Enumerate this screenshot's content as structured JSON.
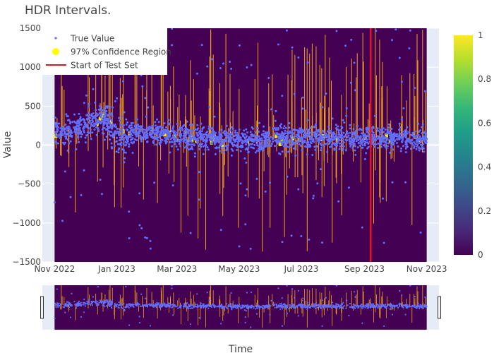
{
  "chart_data": {
    "type": "scatter",
    "title": "HDR Intervals.",
    "xlabel": "Time",
    "ylabel": "Value",
    "x_range": [
      "2022-10-20",
      "2023-11-13"
    ],
    "data_x_range": [
      "2022-11-01",
      "2023-11-01"
    ],
    "ylim": [
      -1500,
      1500
    ],
    "x_ticks": [
      {
        "date": "2022-11-01",
        "label": "Nov 2022"
      },
      {
        "date": "2023-01-01",
        "label": "Jan 2023"
      },
      {
        "date": "2023-03-01",
        "label": "Mar 2023"
      },
      {
        "date": "2023-05-01",
        "label": "May 2023"
      },
      {
        "date": "2023-07-01",
        "label": "Jul 2023"
      },
      {
        "date": "2023-09-01",
        "label": "Sep 2023"
      },
      {
        "date": "2023-11-01",
        "label": "Nov 2023"
      }
    ],
    "y_ticks": [
      -1500,
      -1000,
      -500,
      0,
      500,
      1000,
      1500
    ],
    "y_tick_labels": [
      "−1500",
      "−1000",
      "−500",
      "0",
      "500",
      "1000",
      "1500"
    ],
    "test_start_date": "2023-09-07",
    "legend": {
      "placement": "top-left",
      "entries": [
        "True Value",
        "97% Confidence Region",
        "Start of Test Set"
      ]
    },
    "colorbar": {
      "range": [
        0,
        1
      ],
      "ticks": [
        0,
        0.2,
        0.4,
        0.6,
        0.8,
        1
      ],
      "tick_labels": [
        "0",
        "0.2",
        "0.4",
        "0.6",
        "0.8",
        "1"
      ],
      "colorscale": "Viridis"
    },
    "colors": {
      "scatter": "#636efa",
      "confidence": "#ffff00",
      "confidence_spikes": "#f2a516",
      "test_line": "#e8131a",
      "heatmap_background": "#440154",
      "plot_background": "#e5ecf6"
    },
    "series": [
      {
        "name": "True Value",
        "description_points": [
          {
            "x": "2022-11-01",
            "y": 150
          },
          {
            "x": "2022-12-01",
            "y": 250
          },
          {
            "x": "2022-12-20",
            "y": 350
          },
          {
            "x": "2023-01-01",
            "y": 120
          },
          {
            "x": "2023-02-01",
            "y": 160
          },
          {
            "x": "2023-03-01",
            "y": 110
          },
          {
            "x": "2023-04-01",
            "y": 90
          },
          {
            "x": "2023-05-01",
            "y": 60
          },
          {
            "x": "2023-06-01",
            "y": 70
          },
          {
            "x": "2023-07-01",
            "y": 90
          },
          {
            "x": "2023-08-01",
            "y": 80
          },
          {
            "x": "2023-09-01",
            "y": 100
          },
          {
            "x": "2023-10-01",
            "y": 90
          },
          {
            "x": "2023-11-01",
            "y": 70
          }
        ]
      },
      {
        "name": "97% Confidence Region",
        "description_points": [
          {
            "x": "2022-11-01",
            "y": 0
          },
          {
            "x": "2023-11-01",
            "y": 0
          }
        ]
      }
    ]
  }
}
